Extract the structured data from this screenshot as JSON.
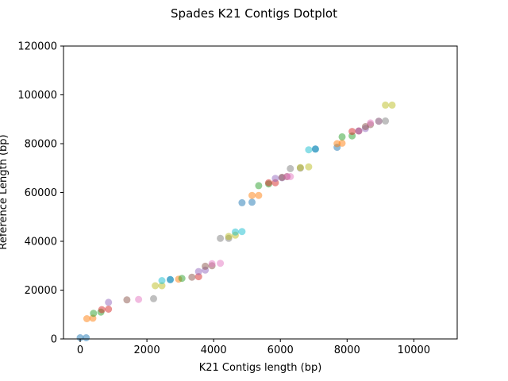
{
  "chart_data": {
    "type": "scatter",
    "title": "Spades K21 Contigs Dotplot",
    "xlabel": "K21 Contigs length (bp)",
    "ylabel": "Reference Length (bp)",
    "xlim": [
      -500,
      11300
    ],
    "ylim": [
      0,
      120000
    ],
    "xticks": [
      0,
      2000,
      4000,
      6000,
      8000,
      10000
    ],
    "yticks": [
      0,
      20000,
      40000,
      60000,
      80000,
      100000,
      120000
    ],
    "grid": false,
    "legend": "none",
    "marker_alpha": 0.5,
    "palette": [
      "#1f77b4",
      "#ff7f0e",
      "#2ca02c",
      "#d62728",
      "#9467bd",
      "#8c564b",
      "#e377c2",
      "#7f7f7f",
      "#bcbd22",
      "#17becf"
    ],
    "series": [
      {
        "color": "#1f77b4",
        "points": [
          [
            0,
            500
          ],
          [
            180,
            500
          ]
        ]
      },
      {
        "color": "#ff7f0e",
        "points": [
          [
            200,
            8300
          ],
          [
            380,
            8500
          ]
        ]
      },
      {
        "color": "#2ca02c",
        "points": [
          [
            400,
            10500
          ],
          [
            620,
            11000
          ]
        ]
      },
      {
        "color": "#d62728",
        "points": [
          [
            650,
            12000
          ],
          [
            850,
            12200
          ]
        ]
      },
      {
        "color": "#9467bd",
        "points": [
          [
            850,
            15000
          ]
        ]
      },
      {
        "color": "#8c564b",
        "points": [
          [
            1400,
            16000
          ]
        ]
      },
      {
        "color": "#e377c2",
        "points": [
          [
            1750,
            16200
          ]
        ]
      },
      {
        "color": "#7f7f7f",
        "points": [
          [
            2200,
            16500
          ]
        ]
      },
      {
        "color": "#bcbd22",
        "points": [
          [
            2250,
            21800
          ],
          [
            2450,
            21800
          ]
        ]
      },
      {
        "color": "#17becf",
        "points": [
          [
            2450,
            23900
          ],
          [
            2700,
            24300
          ]
        ]
      },
      {
        "color": "#1f77b4",
        "points": [
          [
            2700,
            24300
          ]
        ]
      },
      {
        "color": "#ff7f0e",
        "points": [
          [
            2950,
            24500
          ]
        ]
      },
      {
        "color": "#2ca02c",
        "points": [
          [
            3050,
            24800
          ]
        ]
      },
      {
        "color": "#8c564b",
        "points": [
          [
            3350,
            25300
          ]
        ]
      },
      {
        "color": "#d62728",
        "points": [
          [
            3550,
            25500
          ]
        ]
      },
      {
        "color": "#9467bd",
        "points": [
          [
            3550,
            27600
          ],
          [
            3750,
            28200
          ]
        ]
      },
      {
        "color": "#8c564b",
        "points": [
          [
            3750,
            29800
          ],
          [
            3950,
            30000
          ]
        ]
      },
      {
        "color": "#e377c2",
        "points": [
          [
            3950,
            30800
          ],
          [
            4200,
            31000
          ]
        ]
      },
      {
        "color": "#7f7f7f",
        "points": [
          [
            4200,
            41200
          ],
          [
            4450,
            41200
          ]
        ]
      },
      {
        "color": "#bcbd22",
        "points": [
          [
            4450,
            42000
          ],
          [
            4650,
            42500
          ]
        ]
      },
      {
        "color": "#17becf",
        "points": [
          [
            4650,
            43800
          ],
          [
            4850,
            44000
          ]
        ]
      },
      {
        "color": "#1f77b4",
        "points": [
          [
            4850,
            55800
          ],
          [
            5150,
            56000
          ]
        ]
      },
      {
        "color": "#ff7f0e",
        "points": [
          [
            5150,
            58800
          ],
          [
            5350,
            58800
          ]
        ]
      },
      {
        "color": "#2ca02c",
        "points": [
          [
            5350,
            62800
          ],
          [
            5650,
            63500
          ]
        ]
      },
      {
        "color": "#d62728",
        "points": [
          [
            5650,
            64000
          ],
          [
            5850,
            64000
          ]
        ]
      },
      {
        "color": "#9467bd",
        "points": [
          [
            5850,
            65800
          ],
          [
            6050,
            66000
          ]
        ]
      },
      {
        "color": "#8c564b",
        "points": [
          [
            6050,
            66200
          ],
          [
            6200,
            66500
          ]
        ]
      },
      {
        "color": "#e377c2",
        "points": [
          [
            6200,
            66500
          ],
          [
            6300,
            66500
          ]
        ]
      },
      {
        "color": "#7f7f7f",
        "points": [
          [
            6300,
            69800
          ],
          [
            6600,
            70000
          ]
        ]
      },
      {
        "color": "#bcbd22",
        "points": [
          [
            6600,
            70200
          ],
          [
            6850,
            70500
          ]
        ]
      },
      {
        "color": "#17becf",
        "points": [
          [
            6850,
            77500
          ],
          [
            7050,
            77800
          ]
        ]
      },
      {
        "color": "#1f77b4",
        "points": [
          [
            7050,
            77800
          ],
          [
            7700,
            78500
          ]
        ]
      },
      {
        "color": "#ff7f0e",
        "points": [
          [
            7700,
            80000
          ],
          [
            7850,
            80200
          ]
        ]
      },
      {
        "color": "#2ca02c",
        "points": [
          [
            7850,
            82800
          ],
          [
            8150,
            83200
          ]
        ]
      },
      {
        "color": "#d62728",
        "points": [
          [
            8150,
            85000
          ],
          [
            8350,
            85200
          ]
        ]
      },
      {
        "color": "#9467bd",
        "points": [
          [
            8350,
            85200
          ],
          [
            8550,
            86200
          ]
        ]
      },
      {
        "color": "#8c564b",
        "points": [
          [
            8550,
            87000
          ],
          [
            8700,
            87800
          ]
        ]
      },
      {
        "color": "#e377c2",
        "points": [
          [
            8700,
            88500
          ],
          [
            8950,
            89200
          ]
        ]
      },
      {
        "color": "#7f7f7f",
        "points": [
          [
            8950,
            89200
          ],
          [
            9150,
            89300
          ]
        ]
      },
      {
        "color": "#bcbd22",
        "points": [
          [
            9150,
            95800
          ],
          [
            9350,
            95800
          ]
        ]
      }
    ]
  }
}
